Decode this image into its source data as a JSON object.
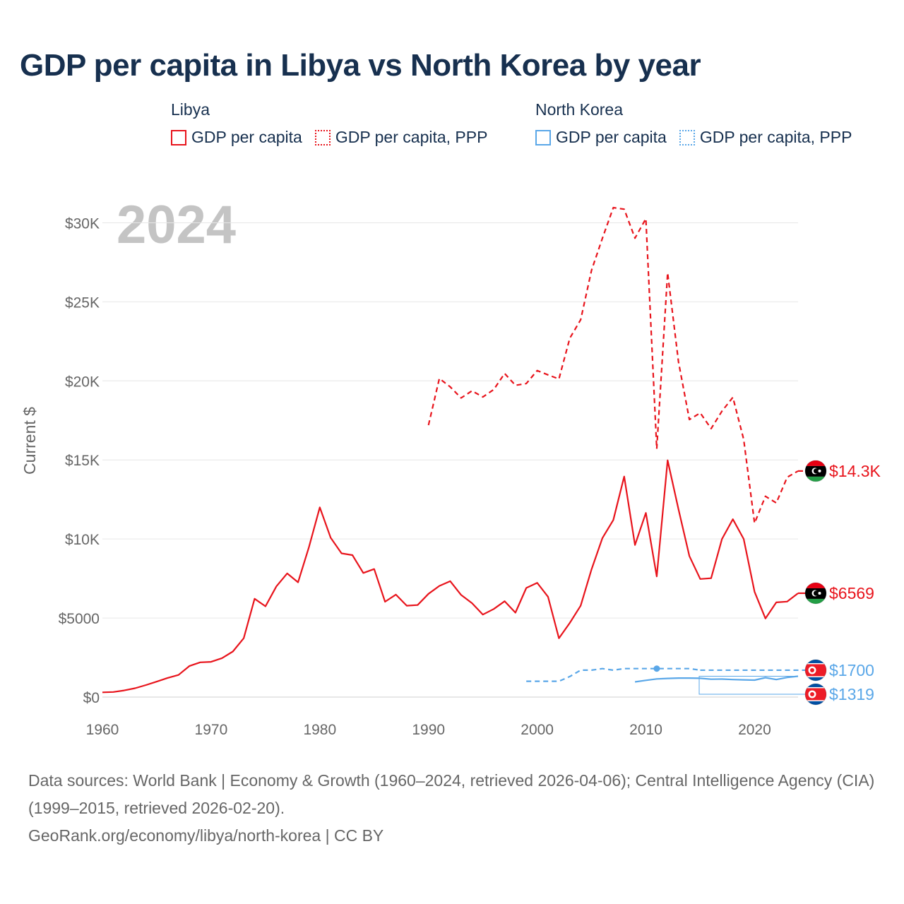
{
  "title": "GDP per capita in Libya vs North Korea by year",
  "legend": [
    {
      "group": "Libya",
      "items": [
        {
          "label": "GDP per capita",
          "color": "#e8141c",
          "style": "solid"
        },
        {
          "label": "GDP per capita, PPP",
          "color": "#e8141c",
          "style": "dotted"
        }
      ]
    },
    {
      "group": "North Korea",
      "items": [
        {
          "label": "GDP per capita",
          "color": "#5aa7e8",
          "style": "solid"
        },
        {
          "label": "GDP per capita, PPP",
          "color": "#5aa7e8",
          "style": "dotted"
        }
      ]
    }
  ],
  "footer": {
    "sources": "Data sources: World Bank | Economy & Growth (1960–2024, retrieved 2026-04-06); Central Intelligence Agency (CIA) (1999–2015, retrieved 2026-02-20).",
    "credit": "GeoRank.org/economy/libya/north-korea | CC BY"
  },
  "chart_data": {
    "type": "line",
    "title": "GDP per capita in Libya vs North Korea by year",
    "year_label": "2024",
    "ylabel": "Current $",
    "xlabel": "",
    "xlim": [
      1960,
      2024
    ],
    "ylim": [
      0,
      31000
    ],
    "x_ticks": [
      {
        "value": 1960,
        "label": "1960"
      },
      {
        "value": 1970,
        "label": "1970"
      },
      {
        "value": 1980,
        "label": "1980"
      },
      {
        "value": 1990,
        "label": "1990"
      },
      {
        "value": 2000,
        "label": "2000"
      },
      {
        "value": 2010,
        "label": "2010"
      },
      {
        "value": 2020,
        "label": "2020"
      }
    ],
    "y_ticks": [
      {
        "value": 0,
        "label": "$0"
      },
      {
        "value": 5000,
        "label": "$5000"
      },
      {
        "value": 10000,
        "label": "$10K"
      },
      {
        "value": 15000,
        "label": "$15K"
      },
      {
        "value": 20000,
        "label": "$20K"
      },
      {
        "value": 25000,
        "label": "$25K"
      },
      {
        "value": 30000,
        "label": "$30K"
      }
    ],
    "grid": true,
    "series": [
      {
        "name": "Libya GDP per capita",
        "country": "Libya",
        "color": "#e8141c",
        "dash": "solid",
        "end_label": "$6569",
        "flag": "libya",
        "points": [
          [
            1960,
            300
          ],
          [
            1961,
            320
          ],
          [
            1962,
            420
          ],
          [
            1963,
            560
          ],
          [
            1964,
            760
          ],
          [
            1965,
            980
          ],
          [
            1966,
            1210
          ],
          [
            1967,
            1400
          ],
          [
            1968,
            1960
          ],
          [
            1969,
            2200
          ],
          [
            1970,
            2230
          ],
          [
            1971,
            2460
          ],
          [
            1972,
            2880
          ],
          [
            1973,
            3720
          ],
          [
            1974,
            6220
          ],
          [
            1975,
            5740
          ],
          [
            1976,
            7000
          ],
          [
            1977,
            7820
          ],
          [
            1978,
            7260
          ],
          [
            1979,
            9480
          ],
          [
            1980,
            12000
          ],
          [
            1981,
            10080
          ],
          [
            1982,
            9090
          ],
          [
            1983,
            8980
          ],
          [
            1984,
            7850
          ],
          [
            1985,
            8100
          ],
          [
            1986,
            6030
          ],
          [
            1987,
            6480
          ],
          [
            1988,
            5780
          ],
          [
            1989,
            5820
          ],
          [
            1990,
            6530
          ],
          [
            1991,
            7030
          ],
          [
            1992,
            7330
          ],
          [
            1993,
            6460
          ],
          [
            1994,
            5940
          ],
          [
            1995,
            5220
          ],
          [
            1996,
            5570
          ],
          [
            1997,
            6060
          ],
          [
            1998,
            5340
          ],
          [
            1999,
            6900
          ],
          [
            2000,
            7230
          ],
          [
            2001,
            6340
          ],
          [
            2002,
            3720
          ],
          [
            2003,
            4690
          ],
          [
            2004,
            5780
          ],
          [
            2005,
            8080
          ],
          [
            2006,
            10060
          ],
          [
            2007,
            11200
          ],
          [
            2008,
            13950
          ],
          [
            2009,
            9620
          ],
          [
            2010,
            11650
          ],
          [
            2011,
            7630
          ],
          [
            2012,
            14980
          ],
          [
            2013,
            11880
          ],
          [
            2014,
            8920
          ],
          [
            2015,
            7470
          ],
          [
            2016,
            7520
          ],
          [
            2017,
            10000
          ],
          [
            2018,
            11250
          ],
          [
            2019,
            10000
          ],
          [
            2020,
            6660
          ],
          [
            2021,
            4970
          ],
          [
            2022,
            5990
          ],
          [
            2023,
            6040
          ],
          [
            2024,
            6569
          ]
        ]
      },
      {
        "name": "Libya GDP per capita, PPP",
        "country": "Libya",
        "color": "#e8141c",
        "dash": "dashed",
        "end_label": "$14.3K",
        "flag": "libya",
        "points": [
          [
            1990,
            17200
          ],
          [
            1991,
            20150
          ],
          [
            1992,
            19620
          ],
          [
            1993,
            18920
          ],
          [
            1994,
            19370
          ],
          [
            1995,
            18980
          ],
          [
            1996,
            19450
          ],
          [
            1997,
            20470
          ],
          [
            1998,
            19720
          ],
          [
            1999,
            19830
          ],
          [
            2000,
            20650
          ],
          [
            2001,
            20380
          ],
          [
            2002,
            20120
          ],
          [
            2003,
            22700
          ],
          [
            2004,
            23870
          ],
          [
            2005,
            27000
          ],
          [
            2006,
            29030
          ],
          [
            2007,
            30960
          ],
          [
            2008,
            30860
          ],
          [
            2009,
            29030
          ],
          [
            2010,
            30260
          ],
          [
            2011,
            15700
          ],
          [
            2012,
            26840
          ],
          [
            2013,
            21200
          ],
          [
            2014,
            17550
          ],
          [
            2015,
            17970
          ],
          [
            2016,
            16980
          ],
          [
            2017,
            18090
          ],
          [
            2018,
            18960
          ],
          [
            2019,
            16300
          ],
          [
            2020,
            11000
          ],
          [
            2021,
            12700
          ],
          [
            2022,
            12280
          ],
          [
            2023,
            13900
          ],
          [
            2024,
            14300
          ]
        ]
      },
      {
        "name": "North Korea GDP per capita",
        "country": "North Korea",
        "color": "#5aa7e8",
        "dash": "solid",
        "end_label": "$1319",
        "flag": "north-korea",
        "points": [
          [
            2009,
            960
          ],
          [
            2010,
            1060
          ],
          [
            2011,
            1150
          ],
          [
            2012,
            1180
          ],
          [
            2013,
            1200
          ],
          [
            2014,
            1200
          ],
          [
            2015,
            1190
          ],
          [
            2016,
            1130
          ],
          [
            2017,
            1140
          ],
          [
            2018,
            1110
          ],
          [
            2019,
            1090
          ],
          [
            2020,
            1070
          ],
          [
            2021,
            1230
          ],
          [
            2022,
            1110
          ],
          [
            2023,
            1240
          ],
          [
            2024,
            1319
          ]
        ]
      },
      {
        "name": "North Korea GDP per capita, PPP",
        "country": "North Korea",
        "color": "#5aa7e8",
        "dash": "dashed",
        "end_label": "$1700",
        "flag": "north-korea",
        "highlight_year": 2011,
        "points": [
          [
            1999,
            1000
          ],
          [
            2000,
            1000
          ],
          [
            2001,
            1000
          ],
          [
            2002,
            1000
          ],
          [
            2003,
            1300
          ],
          [
            2004,
            1700
          ],
          [
            2005,
            1700
          ],
          [
            2006,
            1800
          ],
          [
            2007,
            1700
          ],
          [
            2008,
            1800
          ],
          [
            2009,
            1800
          ],
          [
            2010,
            1800
          ],
          [
            2011,
            1800
          ],
          [
            2012,
            1800
          ],
          [
            2013,
            1800
          ],
          [
            2014,
            1800
          ],
          [
            2015,
            1700
          ]
        ]
      }
    ]
  }
}
